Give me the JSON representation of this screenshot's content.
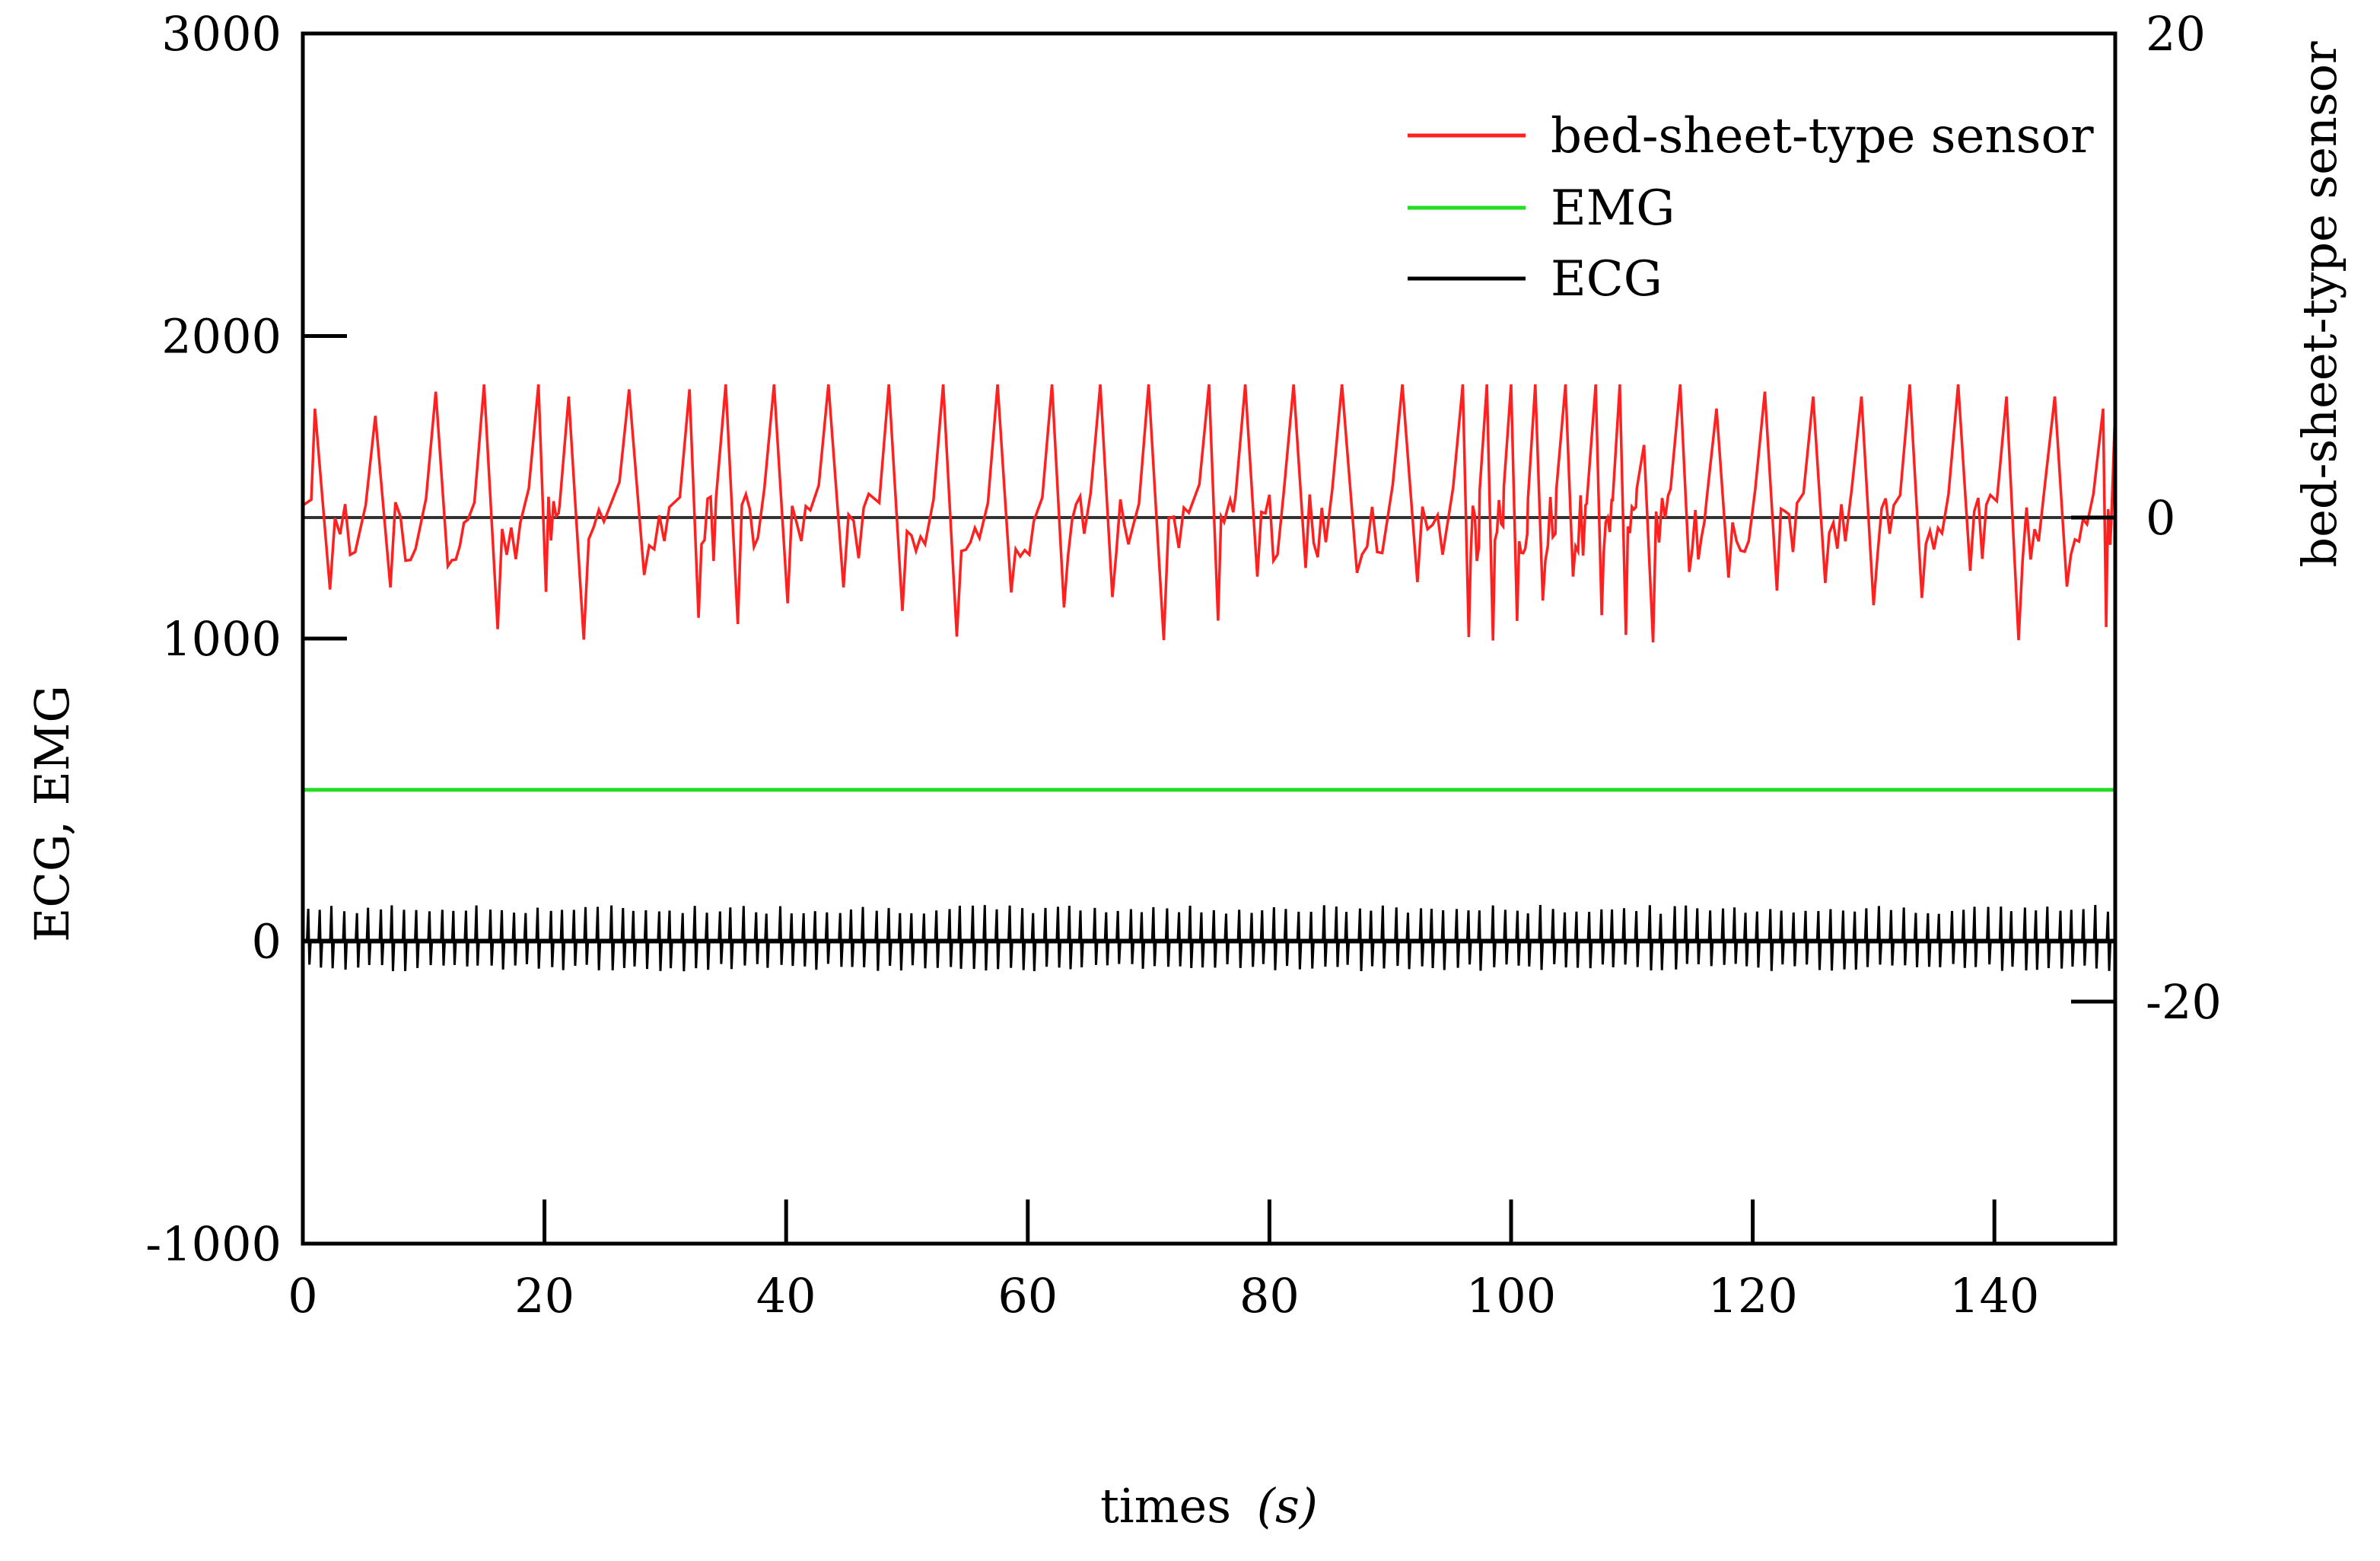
{
  "chart_data": {
    "type": "line",
    "title": "",
    "xlabel": "times",
    "xlabel_unit": "(s)",
    "ylabel_left": "ECG, EMG",
    "ylabel_right": "bed-sheet-type sensor",
    "xlim": [
      0,
      150
    ],
    "ylim_left": [
      -1000,
      3000
    ],
    "ylim_right": [
      -30,
      20
    ],
    "x_ticks": [
      "0",
      "20",
      "40",
      "60",
      "80",
      "100",
      "120",
      "140"
    ],
    "y_left_ticks": [
      "3000",
      "2000",
      "1000",
      "0",
      "-1000"
    ],
    "y_right_ticks": [
      "20",
      "0",
      "-20"
    ],
    "grid": false,
    "legend_position": "top-right",
    "series": [
      {
        "name": "bed-sheet-type sensor",
        "axis": "right",
        "color": "#ff2020",
        "pattern": "oscillating breathing-like waveform, peaks near +5.5, troughs near -5.5, period ~4.2 s",
        "peak_times": [
          1,
          6,
          11,
          15,
          19.5,
          22,
          27,
          32,
          35,
          39,
          43.5,
          48.5,
          53,
          57.5,
          62,
          66,
          70,
          75,
          78,
          82,
          86,
          91,
          96,
          98,
          100,
          102,
          104.5,
          107,
          109,
          111,
          114,
          117,
          121,
          125,
          129,
          133,
          137,
          141,
          145,
          149
        ],
        "peak_values": [
          4.5,
          4.2,
          5.2,
          5.5,
          5.5,
          5.0,
          5.3,
          5.3,
          5.5,
          5.5,
          5.5,
          5.5,
          5.5,
          5.5,
          5.5,
          5.5,
          5.5,
          5.5,
          5.5,
          5.5,
          5.5,
          5.5,
          5.5,
          5.5,
          5.5,
          5.5,
          5.5,
          5.5,
          5.5,
          3.0,
          5.5,
          4.5,
          5.2,
          5.0,
          5.0,
          5.5,
          5.5,
          5.0,
          5.0,
          4.5
        ],
        "trough_values_range": [
          -5.5,
          -2.0
        ]
      },
      {
        "name": "EMG",
        "axis": "left",
        "color": "#22dd22",
        "pattern": "nearly constant baseline",
        "value": 500
      },
      {
        "name": "ECG",
        "axis": "left",
        "color": "#000000",
        "pattern": "dense heartbeat spikes around baseline 0",
        "baseline": 0,
        "spike_max": 120,
        "spike_min": -100,
        "reference_line_right_axis": 0
      }
    ]
  },
  "legend": {
    "items": [
      {
        "label": "bed-sheet-type sensor",
        "color": "#ff2020"
      },
      {
        "label": "EMG",
        "color": "#22dd22"
      },
      {
        "label": "ECG",
        "color": "#000000"
      }
    ]
  }
}
